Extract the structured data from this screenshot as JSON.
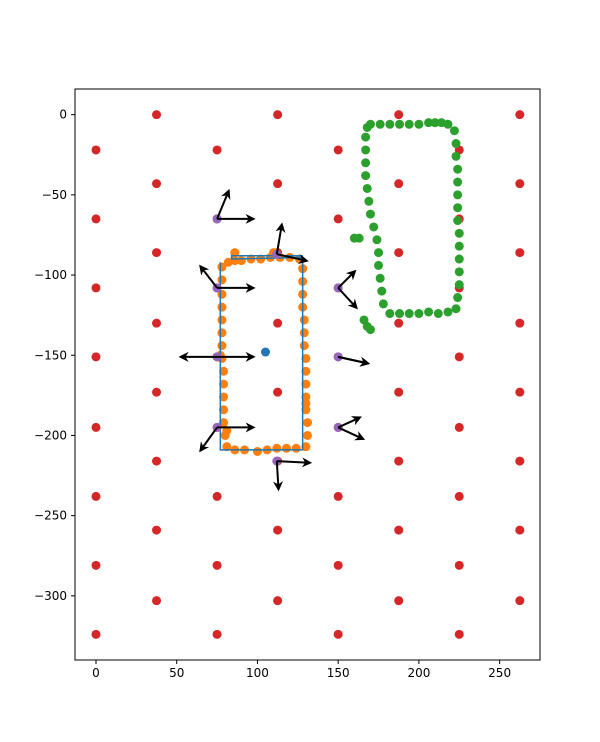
{
  "chart_data": {
    "type": "scatter",
    "title": "",
    "xlabel": "",
    "ylabel": "",
    "xlim": [
      -13,
      275
    ],
    "ylim": [
      -340,
      16
    ],
    "xticks": [
      0,
      50,
      100,
      150,
      200,
      250
    ],
    "yticks": [
      0,
      -50,
      -100,
      -150,
      -200,
      -250,
      -300
    ],
    "grid": false,
    "legend": "none",
    "colors": {
      "grid_dots": "#d62728",
      "orange_points": "#ff7f0e",
      "green_points": "#2ca02c",
      "blue_path": "#1f77b4",
      "center": "#1f77b4",
      "sensors": "#9467bd",
      "arrows": "#000000"
    },
    "series": [
      {
        "kind": "grid_dots",
        "points": [
          [
            0,
            -22
          ],
          [
            0,
            -65
          ],
          [
            0,
            -108
          ],
          [
            0,
            -151
          ],
          [
            0,
            -195
          ],
          [
            0,
            -238
          ],
          [
            0,
            -281
          ],
          [
            0,
            -324
          ],
          [
            37.5,
            0
          ],
          [
            37.5,
            -43
          ],
          [
            37.5,
            -86
          ],
          [
            37.5,
            -130
          ],
          [
            37.5,
            -173
          ],
          [
            37.5,
            -216
          ],
          [
            37.5,
            -259
          ],
          [
            37.5,
            -303
          ],
          [
            75,
            -22
          ],
          [
            75,
            -65
          ],
          [
            75,
            -108
          ],
          [
            75,
            -151
          ],
          [
            75,
            -195
          ],
          [
            75,
            -238
          ],
          [
            75,
            -281
          ],
          [
            75,
            -324
          ],
          [
            112.5,
            0
          ],
          [
            112.5,
            -43
          ],
          [
            112.5,
            -86
          ],
          [
            112.5,
            -130
          ],
          [
            112.5,
            -173
          ],
          [
            112.5,
            -216
          ],
          [
            112.5,
            -259
          ],
          [
            112.5,
            -303
          ],
          [
            150,
            -22
          ],
          [
            150,
            -65
          ],
          [
            150,
            -108
          ],
          [
            150,
            -151
          ],
          [
            150,
            -195
          ],
          [
            150,
            -238
          ],
          [
            150,
            -281
          ],
          [
            150,
            -324
          ],
          [
            187.5,
            0
          ],
          [
            187.5,
            -43
          ],
          [
            187.5,
            -86
          ],
          [
            187.5,
            -130
          ],
          [
            187.5,
            -173
          ],
          [
            187.5,
            -216
          ],
          [
            187.5,
            -259
          ],
          [
            187.5,
            -303
          ],
          [
            225,
            -22
          ],
          [
            225,
            -65
          ],
          [
            225,
            -108
          ],
          [
            225,
            -151
          ],
          [
            225,
            -195
          ],
          [
            225,
            -238
          ],
          [
            225,
            -281
          ],
          [
            225,
            -324
          ],
          [
            262.5,
            0
          ],
          [
            262.5,
            -43
          ],
          [
            262.5,
            -86
          ],
          [
            262.5,
            -130
          ],
          [
            262.5,
            -173
          ],
          [
            262.5,
            -216
          ],
          [
            262.5,
            -259
          ],
          [
            262.5,
            -303
          ]
        ]
      },
      {
        "kind": "orange_points",
        "points": [
          [
            78,
            -95
          ],
          [
            78,
            -103
          ],
          [
            78,
            -112
          ],
          [
            78,
            -120
          ],
          [
            78,
            -128
          ],
          [
            78,
            -136
          ],
          [
            78,
            -144
          ],
          [
            78,
            -152
          ],
          [
            79,
            -160
          ],
          [
            79,
            -168
          ],
          [
            79,
            -176
          ],
          [
            79,
            -184
          ],
          [
            79,
            -192
          ],
          [
            80,
            -200
          ],
          [
            81,
            -207
          ],
          [
            86,
            -209
          ],
          [
            92,
            -209
          ],
          [
            100,
            -210
          ],
          [
            106,
            -209
          ],
          [
            112,
            -208
          ],
          [
            118,
            -208
          ],
          [
            124,
            -208
          ],
          [
            130,
            -207
          ],
          [
            131,
            -200
          ],
          [
            131,
            -192
          ],
          [
            130,
            -184
          ],
          [
            130,
            -176
          ],
          [
            130,
            -168
          ],
          [
            130,
            -160
          ],
          [
            130,
            -152
          ],
          [
            129,
            -144
          ],
          [
            129,
            -136
          ],
          [
            129,
            -128
          ],
          [
            128,
            -120
          ],
          [
            128,
            -112
          ],
          [
            128,
            -104
          ],
          [
            128,
            -96
          ],
          [
            126,
            -90
          ],
          [
            120,
            -89
          ],
          [
            114,
            -89
          ],
          [
            108,
            -89
          ],
          [
            102,
            -90
          ],
          [
            96,
            -90
          ],
          [
            90,
            -91
          ],
          [
            86,
            -91
          ],
          [
            82,
            -92
          ],
          [
            86,
            -86
          ],
          [
            110,
            -86
          ],
          [
            130,
            -180
          ],
          [
            77,
            -150
          ],
          [
            81,
            -197
          ]
        ]
      },
      {
        "kind": "green_points",
        "points": [
          [
            170,
            -6
          ],
          [
            176,
            -6
          ],
          [
            182,
            -6
          ],
          [
            188,
            -6
          ],
          [
            194,
            -6
          ],
          [
            200,
            -6
          ],
          [
            206,
            -5
          ],
          [
            210,
            -5
          ],
          [
            214,
            -5
          ],
          [
            218,
            -6
          ],
          [
            222,
            -10
          ],
          [
            223,
            -18
          ],
          [
            223,
            -26
          ],
          [
            224,
            -34
          ],
          [
            224,
            -42
          ],
          [
            224,
            -50
          ],
          [
            224,
            -58
          ],
          [
            224,
            -66
          ],
          [
            225,
            -74
          ],
          [
            225,
            -82
          ],
          [
            225,
            -90
          ],
          [
            225,
            -98
          ],
          [
            225,
            -106
          ],
          [
            224,
            -114
          ],
          [
            223,
            -121
          ],
          [
            218,
            -123
          ],
          [
            212,
            -124
          ],
          [
            206,
            -123
          ],
          [
            200,
            -124
          ],
          [
            194,
            -124
          ],
          [
            188,
            -124
          ],
          [
            182,
            -124
          ],
          [
            178,
            -118
          ],
          [
            177,
            -110
          ],
          [
            176,
            -102
          ],
          [
            175,
            -94
          ],
          [
            175,
            -86
          ],
          [
            174,
            -78
          ],
          [
            172,
            -70
          ],
          [
            170,
            -62
          ],
          [
            169,
            -54
          ],
          [
            168,
            -46
          ],
          [
            167,
            -38
          ],
          [
            167,
            -30
          ],
          [
            167,
            -22
          ],
          [
            167,
            -14
          ],
          [
            168,
            -8
          ],
          [
            166,
            -128
          ],
          [
            168,
            -132
          ],
          [
            170,
            -134
          ],
          [
            163,
            -77
          ],
          [
            160,
            -77
          ]
        ]
      },
      {
        "kind": "blue_path",
        "points": [
          [
            77,
            -92
          ],
          [
            77,
            -209
          ],
          [
            128,
            -209
          ],
          [
            128,
            -89
          ],
          [
            84,
            -90
          ],
          [
            84,
            -88
          ],
          [
            128,
            -88
          ]
        ]
      },
      {
        "kind": "center",
        "points": [
          [
            105,
            -148
          ]
        ]
      },
      {
        "kind": "sensors",
        "points": [
          [
            75,
            -65
          ],
          [
            75,
            -108
          ],
          [
            75,
            -151
          ],
          [
            75,
            -195
          ],
          [
            112,
            -87
          ],
          [
            112,
            -216
          ],
          [
            150,
            -108
          ],
          [
            150,
            -151
          ],
          [
            150,
            -195
          ]
        ]
      },
      {
        "kind": "arrows",
        "vectors": [
          [
            75,
            -65,
            7,
            17
          ],
          [
            75,
            -65,
            22,
            0
          ],
          [
            75,
            -108,
            -10,
            13
          ],
          [
            75,
            -108,
            22,
            0
          ],
          [
            75,
            -151,
            -22,
            0
          ],
          [
            75,
            -151,
            22,
            0
          ],
          [
            75,
            -195,
            -10,
            -14
          ],
          [
            75,
            -195,
            22,
            0
          ],
          [
            112,
            -87,
            3,
            18
          ],
          [
            112,
            -87,
            18,
            -4
          ],
          [
            112,
            -216,
            1,
            -17
          ],
          [
            112,
            -216,
            20,
            -1
          ],
          [
            150,
            -108,
            10,
            10
          ],
          [
            150,
            -108,
            11,
            -12
          ],
          [
            150,
            -151,
            18,
            -4
          ],
          [
            150,
            -151,
            18,
            -4
          ],
          [
            150,
            -195,
            15,
            -7
          ],
          [
            150,
            -195,
            13,
            6
          ]
        ]
      }
    ]
  }
}
